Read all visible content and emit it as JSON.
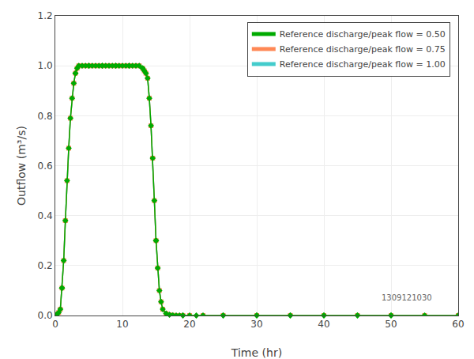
{
  "chart_data": {
    "type": "line",
    "x_label": "Time (hr)",
    "y_label": "Outflow (m³/s)",
    "x": [
      0,
      0.25,
      0.5,
      0.75,
      1.0,
      1.25,
      1.5,
      1.75,
      2.0,
      2.25,
      2.5,
      2.75,
      3.0,
      3.25,
      3.5,
      4.0,
      4.5,
      5.0,
      5.5,
      6.0,
      6.5,
      7.0,
      7.5,
      8.0,
      8.5,
      9.0,
      9.5,
      10.0,
      10.5,
      11.0,
      11.5,
      12.0,
      12.5,
      13.0,
      13.25,
      13.5,
      13.75,
      14.0,
      14.25,
      14.5,
      14.75,
      15.0,
      15.25,
      15.5,
      15.75,
      16.0,
      16.5,
      17.0,
      17.5,
      18.0,
      18.5,
      19.0,
      20.0,
      22.0,
      25.0,
      30.0,
      35.0,
      40.0,
      45.0,
      50.0,
      55.0,
      60.0
    ],
    "series": [
      {
        "name": "Reference discharge/peak flow = 0.50",
        "color": "#00aa00",
        "marker": "diamond",
        "line_style": "solid",
        "values": [
          0,
          0.005,
          0.012,
          0.025,
          0.11,
          0.22,
          0.38,
          0.54,
          0.67,
          0.79,
          0.87,
          0.93,
          0.97,
          0.99,
          1.0,
          1.0,
          1.0,
          1.0,
          1.0,
          1.0,
          1.0,
          1.0,
          1.0,
          1.0,
          1.0,
          1.0,
          1.0,
          1.0,
          1.0,
          1.0,
          1.0,
          1.0,
          1.0,
          0.99,
          0.98,
          0.97,
          0.95,
          0.87,
          0.76,
          0.63,
          0.46,
          0.3,
          0.19,
          0.1,
          0.055,
          0.025,
          0.008,
          0.003,
          0.001,
          0.0,
          0.0,
          0.0,
          0.0,
          0.0,
          0.0,
          0.0,
          0.0,
          0.0,
          0.0,
          0.0,
          0.0,
          0.0
        ]
      },
      {
        "name": "Reference discharge/peak flow = 0.75",
        "color": "#ff8855",
        "marker": "square",
        "line_style": "solid",
        "values": [
          0,
          0.005,
          0.012,
          0.025,
          0.11,
          0.22,
          0.38,
          0.54,
          0.67,
          0.79,
          0.87,
          0.93,
          0.97,
          0.99,
          1.0,
          1.0,
          1.0,
          1.0,
          1.0,
          1.0,
          1.0,
          1.0,
          1.0,
          1.0,
          1.0,
          1.0,
          1.0,
          1.0,
          1.0,
          1.0,
          1.0,
          1.0,
          1.0,
          0.99,
          0.98,
          0.97,
          0.95,
          0.87,
          0.76,
          0.63,
          0.46,
          0.3,
          0.19,
          0.1,
          0.055,
          0.025,
          0.008,
          0.003,
          0.001,
          0.0,
          0.0,
          0.0,
          0.0,
          0.0,
          0.0,
          0.0,
          0.0,
          0.0,
          0.0,
          0.0,
          0.0,
          0.0
        ]
      },
      {
        "name": "Reference discharge/peak flow = 1.00",
        "color": "#44cccc",
        "marker": "triangle-down",
        "line_style": "solid",
        "values": [
          0,
          0.005,
          0.012,
          0.025,
          0.11,
          0.22,
          0.38,
          0.54,
          0.67,
          0.79,
          0.87,
          0.93,
          0.97,
          0.99,
          1.0,
          1.0,
          1.0,
          1.0,
          1.0,
          1.0,
          1.0,
          1.0,
          1.0,
          1.0,
          1.0,
          1.0,
          1.0,
          1.0,
          1.0,
          1.0,
          1.0,
          1.0,
          1.0,
          0.99,
          0.98,
          0.97,
          0.95,
          0.87,
          0.76,
          0.63,
          0.46,
          0.3,
          0.19,
          0.1,
          0.055,
          0.025,
          0.008,
          0.003,
          0.001,
          0.0,
          0.0,
          0.0,
          0.0,
          0.0,
          0.0,
          0.0,
          0.0,
          0.0,
          0.0,
          0.0,
          0.0,
          0.0
        ]
      },
      {
        "type": "scatter",
        "color": "#00aa00",
        "marker": "diamond",
        "x": [
          1,
          3,
          5,
          7,
          9,
          11,
          13,
          15,
          17,
          19,
          21,
          25,
          30,
          35,
          40,
          45,
          50
        ],
        "values": [
          0.11,
          0.97,
          1.0,
          1.0,
          1.0,
          1.0,
          0.99,
          0.3,
          0.003,
          0.0,
          0.0,
          0.0,
          0.0,
          0.0,
          0.0,
          0.0,
          0.0
        ]
      }
    ],
    "xlim": [
      0,
      60
    ],
    "ylim": [
      0,
      1.2
    ],
    "xticks": [
      0,
      10,
      20,
      30,
      40,
      50,
      60
    ],
    "yticks": [
      {
        "value": 0,
        "label": "0.0"
      },
      0.2,
      0.4,
      0.6,
      0.8,
      {
        "value": 1.0,
        "label": "1.0"
      },
      1.2
    ],
    "grid": true,
    "legend": "upper right",
    "annotations": [
      "1309121030"
    ]
  }
}
